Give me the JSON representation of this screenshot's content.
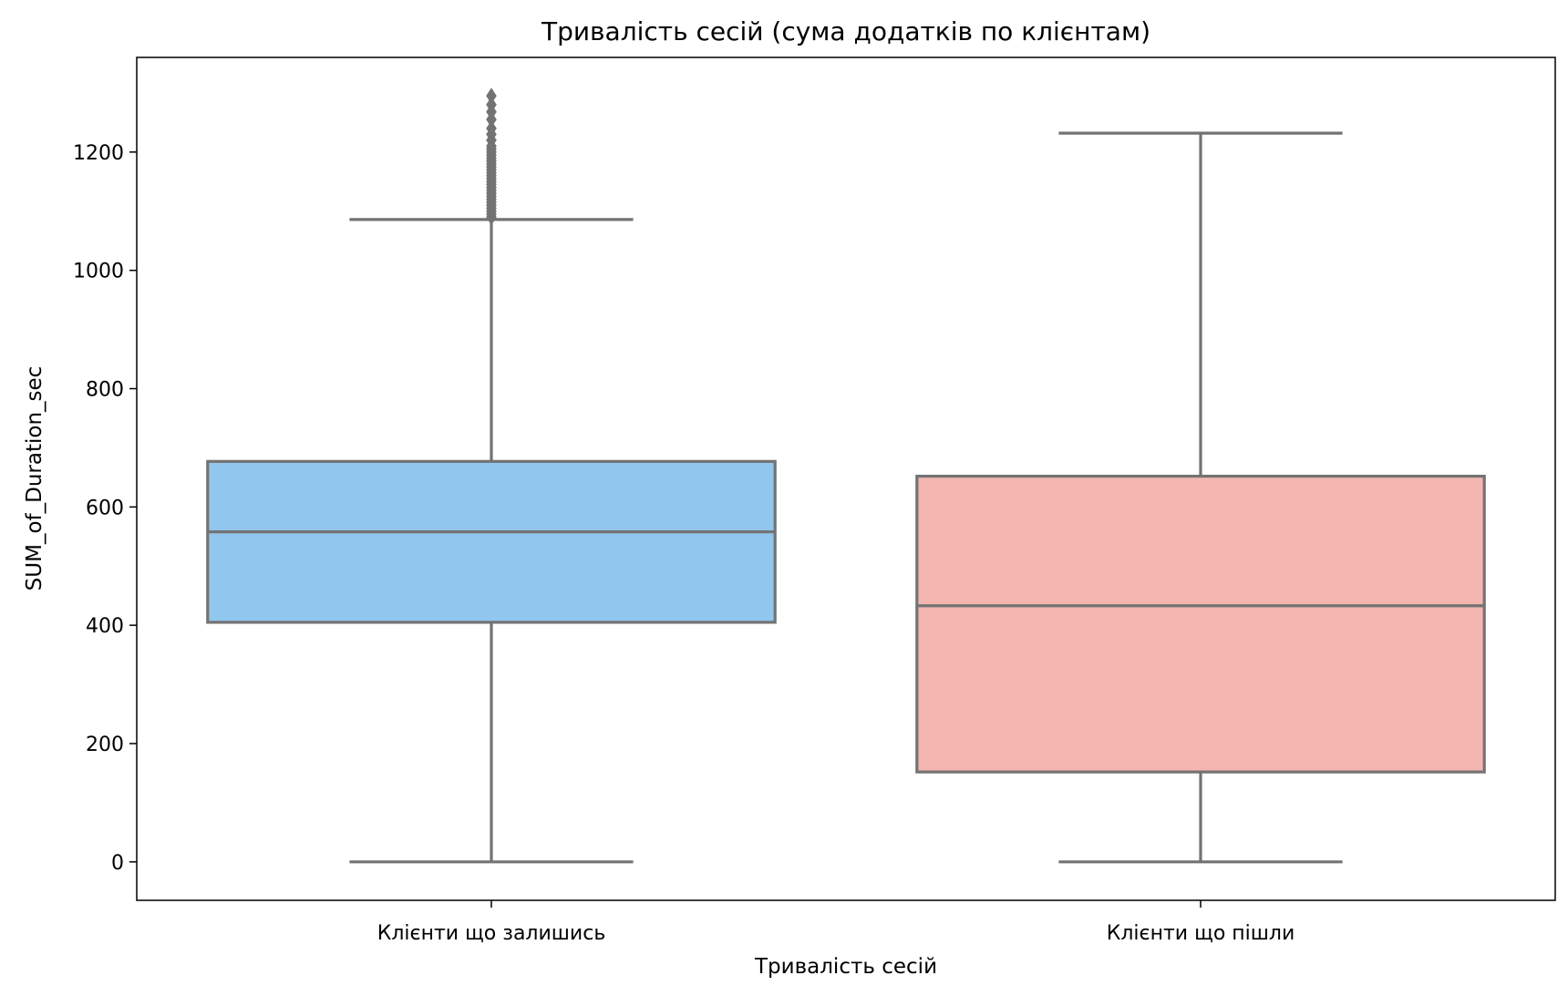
{
  "chart_data": {
    "type": "box",
    "title": "Тривалість сесій (сума додатків по клієнтам)",
    "xlabel": "Тривалість сесій",
    "ylabel": "SUM_of_Duration_sec",
    "ylim": [
      -65,
      1360
    ],
    "yticks": [
      0,
      200,
      400,
      600,
      800,
      1000,
      1200
    ],
    "grid": false,
    "line_color": "#737373",
    "categories": [
      "Клієнти що залишись",
      "Клієнти що пішли"
    ],
    "series": [
      {
        "category": "Клієнти що залишись",
        "color": "#91c6ee",
        "whisker_low": 0,
        "q1": 405,
        "median": 558,
        "q3": 677,
        "whisker_high": 1086,
        "outliers": [
          1090,
          1095,
          1100,
          1105,
          1110,
          1115,
          1120,
          1125,
          1130,
          1135,
          1140,
          1145,
          1150,
          1155,
          1160,
          1165,
          1170,
          1175,
          1180,
          1185,
          1190,
          1195,
          1200,
          1205,
          1210,
          1220,
          1230,
          1240,
          1255,
          1268,
          1280,
          1295
        ]
      },
      {
        "category": "Клієнти що пішли",
        "color": "#f3b6b0",
        "whisker_low": 0,
        "q1": 152,
        "median": 433,
        "q3": 652,
        "whisker_high": 1232,
        "outliers": []
      }
    ]
  }
}
